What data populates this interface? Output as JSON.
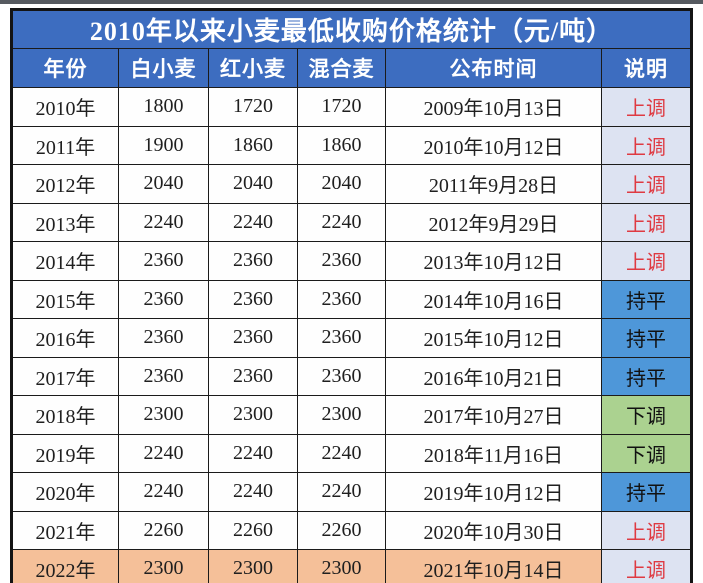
{
  "title": "2010年以来小麦最低收购价格统计（元/吨）",
  "columns": [
    "年份",
    "白小麦",
    "红小麦",
    "混合麦",
    "公布时间",
    "说明"
  ],
  "rows": [
    {
      "year": "2010年",
      "white": "1800",
      "red": "1720",
      "mixed": "1720",
      "date": "2009年10月13日",
      "note": "上调",
      "note_type": "up",
      "highlight": false
    },
    {
      "year": "2011年",
      "white": "1900",
      "red": "1860",
      "mixed": "1860",
      "date": "2010年10月12日",
      "note": "上调",
      "note_type": "up",
      "highlight": false
    },
    {
      "year": "2012年",
      "white": "2040",
      "red": "2040",
      "mixed": "2040",
      "date": "2011年9月28日",
      "note": "上调",
      "note_type": "up",
      "highlight": false
    },
    {
      "year": "2013年",
      "white": "2240",
      "red": "2240",
      "mixed": "2240",
      "date": "2012年9月29日",
      "note": "上调",
      "note_type": "up",
      "highlight": false
    },
    {
      "year": "2014年",
      "white": "2360",
      "red": "2360",
      "mixed": "2360",
      "date": "2013年10月12日",
      "note": "上调",
      "note_type": "up",
      "highlight": false
    },
    {
      "year": "2015年",
      "white": "2360",
      "red": "2360",
      "mixed": "2360",
      "date": "2014年10月16日",
      "note": "持平",
      "note_type": "flat",
      "highlight": false
    },
    {
      "year": "2016年",
      "white": "2360",
      "red": "2360",
      "mixed": "2360",
      "date": "2015年10月12日",
      "note": "持平",
      "note_type": "flat",
      "highlight": false
    },
    {
      "year": "2017年",
      "white": "2360",
      "red": "2360",
      "mixed": "2360",
      "date": "2016年10月21日",
      "note": "持平",
      "note_type": "flat",
      "highlight": false
    },
    {
      "year": "2018年",
      "white": "2300",
      "red": "2300",
      "mixed": "2300",
      "date": "2017年10月27日",
      "note": "下调",
      "note_type": "down",
      "highlight": false
    },
    {
      "year": "2019年",
      "white": "2240",
      "red": "2240",
      "mixed": "2240",
      "date": "2018年11月16日",
      "note": "下调",
      "note_type": "down",
      "highlight": false
    },
    {
      "year": "2020年",
      "white": "2240",
      "red": "2240",
      "mixed": "2240",
      "date": "2019年10月12日",
      "note": "持平",
      "note_type": "flat",
      "highlight": false
    },
    {
      "year": "2021年",
      "white": "2260",
      "red": "2260",
      "mixed": "2260",
      "date": "2020年10月30日",
      "note": "上调",
      "note_type": "up",
      "highlight": false
    },
    {
      "year": "2022年",
      "white": "2300",
      "red": "2300",
      "mixed": "2300",
      "date": "2021年10月14日",
      "note": "上调",
      "note_type": "up",
      "highlight": true
    }
  ],
  "colors": {
    "header_bg": "#3D6DC0",
    "note_up_bg": "#DDE3F2",
    "note_up_text": "#DF3A42",
    "note_flat_bg": "#4E97D9",
    "note_down_bg": "#ABD290",
    "highlight_row_bg": "#F5C099"
  }
}
